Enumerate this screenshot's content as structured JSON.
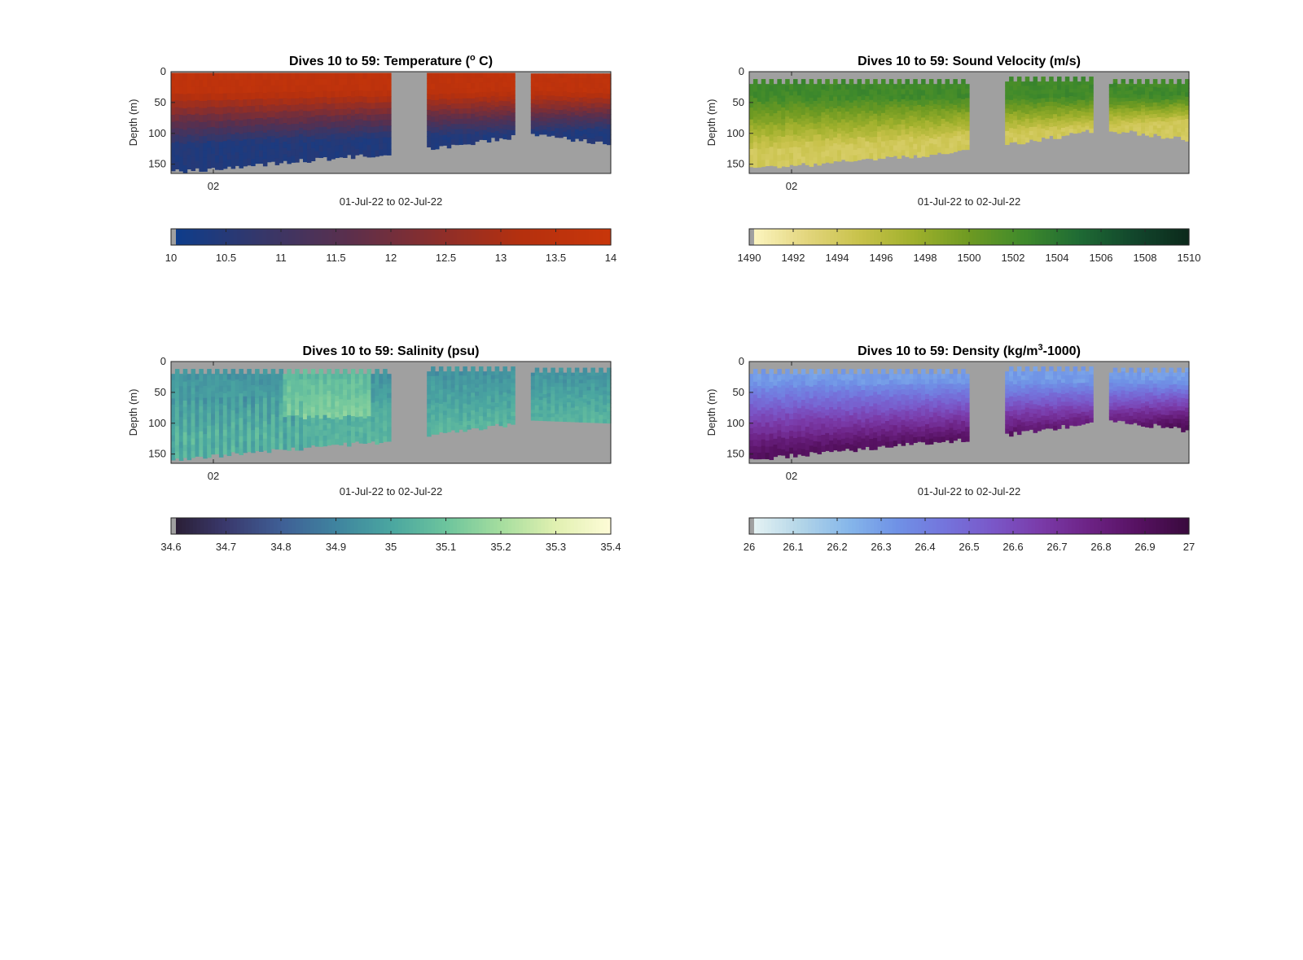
{
  "figure": {
    "background": "#ffffff",
    "no_data_color": "#a0a0a0"
  },
  "chart_data": [
    {
      "type": "heatmap",
      "title": "Dives 10 to 59: Temperature (",
      "title_superscript": "o",
      "title_suffix": " C)",
      "ylabel": "Depth (m)",
      "xlabel": "01-Jul-22 to 02-Jul-22",
      "x_tick_labels": [
        "02"
      ],
      "y_ticks": [
        0,
        50,
        100,
        150
      ],
      "ylim": [
        0,
        165
      ],
      "y_reversed": true,
      "colorbar": {
        "min": 10,
        "max": 14,
        "ticks": [
          "10",
          "10.5",
          "11",
          "11.5",
          "12",
          "12.5",
          "13",
          "13.5",
          "14"
        ],
        "colors": [
          "#0d3d8c",
          "#35376a",
          "#5a2f4d",
          "#8a2e2c",
          "#b5300e",
          "#c8360a"
        ]
      },
      "field": {
        "surface_value": 13.6,
        "deep_value": 10.4,
        "thermocline_top": 30,
        "thermocline_bottom_start": 120,
        "thermocline_bottom_end": 95
      },
      "segments": [
        {
          "from": 0.0,
          "to": 0.5,
          "top_depth": 2,
          "bottom_start": 162,
          "bottom_end": 132,
          "jagged_top": false,
          "jagged_bottom": true
        },
        {
          "from": 0.58,
          "to": 0.78,
          "top_depth": 2,
          "bottom_start": 125,
          "bottom_end": 105,
          "jagged_top": false,
          "jagged_bottom": true
        },
        {
          "from": 0.82,
          "to": 1.0,
          "top_depth": 3,
          "bottom_start": 102,
          "bottom_end": 118,
          "jagged_top": false,
          "jagged_bottom": true
        }
      ]
    },
    {
      "type": "heatmap",
      "title": "Dives 10 to 59: Sound Velocity (m/s)",
      "title_superscript": "",
      "title_suffix": "",
      "ylabel": "Depth (m)",
      "xlabel": "01-Jul-22 to 02-Jul-22",
      "x_tick_labels": [
        "02"
      ],
      "y_ticks": [
        0,
        50,
        100,
        150
      ],
      "ylim": [
        0,
        165
      ],
      "y_reversed": true,
      "colorbar": {
        "min": 1490,
        "max": 1510,
        "ticks": [
          "1490",
          "1492",
          "1494",
          "1496",
          "1498",
          "1500",
          "1502",
          "1504",
          "1506",
          "1508",
          "1510"
        ],
        "colors": [
          "#fdf6c3",
          "#e3d67e",
          "#c8c24a",
          "#9fb02c",
          "#6e9a22",
          "#3f8a2b",
          "#1f6b34",
          "#12472c",
          "#0c2a1c"
        ]
      },
      "field": {
        "surface_value": 1502.5,
        "deep_value": 1494.2,
        "thermocline_top": 40,
        "thermocline_bottom_start": 130,
        "thermocline_bottom_end": 80
      },
      "segments": [
        {
          "from": 0.0,
          "to": 0.5,
          "top_depth": 12,
          "bottom_start": 158,
          "bottom_end": 128,
          "jagged_top": true,
          "jagged_bottom": true
        },
        {
          "from": 0.58,
          "to": 0.78,
          "top_depth": 8,
          "bottom_start": 118,
          "bottom_end": 95,
          "jagged_top": true,
          "jagged_bottom": true
        },
        {
          "from": 0.82,
          "to": 1.0,
          "top_depth": 12,
          "bottom_start": 95,
          "bottom_end": 110,
          "jagged_top": true,
          "jagged_bottom": true
        }
      ]
    },
    {
      "type": "heatmap",
      "title": "Dives 10 to 59: Salinity (psu)",
      "title_superscript": "",
      "title_suffix": "",
      "ylabel": "Depth (m)",
      "xlabel": "01-Jul-22 to 02-Jul-22",
      "x_tick_labels": [
        "02"
      ],
      "y_ticks": [
        0,
        50,
        100,
        150
      ],
      "ylim": [
        0,
        165
      ],
      "y_reversed": true,
      "colorbar": {
        "min": 34.6,
        "max": 35.4,
        "ticks": [
          "34.6",
          "34.7",
          "34.8",
          "34.9",
          "35",
          "35.1",
          "35.2",
          "35.3",
          "35.4"
        ],
        "colors": [
          "#2a1d33",
          "#3a3a6e",
          "#3f5f96",
          "#3f849f",
          "#4aa6a0",
          "#6cc49d",
          "#a4dd9e",
          "#e0f0b0",
          "#fdfbd6"
        ]
      },
      "field": {
        "surface_value": 34.95,
        "deep_value": 35.05,
        "thermocline_top": 20,
        "thermocline_bottom_start": 120,
        "thermocline_bottom_end": 90
      },
      "segments": [
        {
          "from": 0.0,
          "to": 0.5,
          "top_depth": 12,
          "bottom_start": 158,
          "bottom_end": 128,
          "jagged_top": true,
          "jagged_bottom": true
        },
        {
          "from": 0.58,
          "to": 0.78,
          "top_depth": 8,
          "bottom_start": 118,
          "bottom_end": 100,
          "jagged_top": true,
          "jagged_bottom": true
        },
        {
          "from": 0.82,
          "to": 1.0,
          "top_depth": 10,
          "bottom_start": 95,
          "bottom_end": 100,
          "jagged_top": true,
          "jagged_bottom": false
        }
      ]
    },
    {
      "type": "heatmap",
      "title": "Dives 10 to 59: Density (kg/m",
      "title_superscript": "3",
      "title_suffix": "-1000)",
      "ylabel": "Depth (m)",
      "xlabel": "01-Jul-22 to 02-Jul-22",
      "x_tick_labels": [
        "02"
      ],
      "y_ticks": [
        0,
        50,
        100,
        150
      ],
      "ylim": [
        0,
        165
      ],
      "y_reversed": true,
      "colorbar": {
        "min": 26,
        "max": 27,
        "ticks": [
          "26",
          "26.1",
          "26.2",
          "26.3",
          "26.4",
          "26.5",
          "26.6",
          "26.7",
          "26.8",
          "26.9",
          "27"
        ],
        "colors": [
          "#e8f4f4",
          "#b4d6e8",
          "#86b7ea",
          "#6f92e6",
          "#7474dc",
          "#7a57c8",
          "#7a3aa8",
          "#6c2284",
          "#561161",
          "#3a0a3e"
        ]
      },
      "field": {
        "surface_value": 26.3,
        "deep_value": 26.9,
        "thermocline_top": 30,
        "thermocline_bottom_start": 150,
        "thermocline_bottom_end": 100
      },
      "segments": [
        {
          "from": 0.0,
          "to": 0.5,
          "top_depth": 12,
          "bottom_start": 158,
          "bottom_end": 125,
          "jagged_top": true,
          "jagged_bottom": true
        },
        {
          "from": 0.58,
          "to": 0.78,
          "top_depth": 8,
          "bottom_start": 118,
          "bottom_end": 98,
          "jagged_top": true,
          "jagged_bottom": true
        },
        {
          "from": 0.82,
          "to": 1.0,
          "top_depth": 10,
          "bottom_start": 95,
          "bottom_end": 112,
          "jagged_top": true,
          "jagged_bottom": true
        }
      ]
    }
  ]
}
